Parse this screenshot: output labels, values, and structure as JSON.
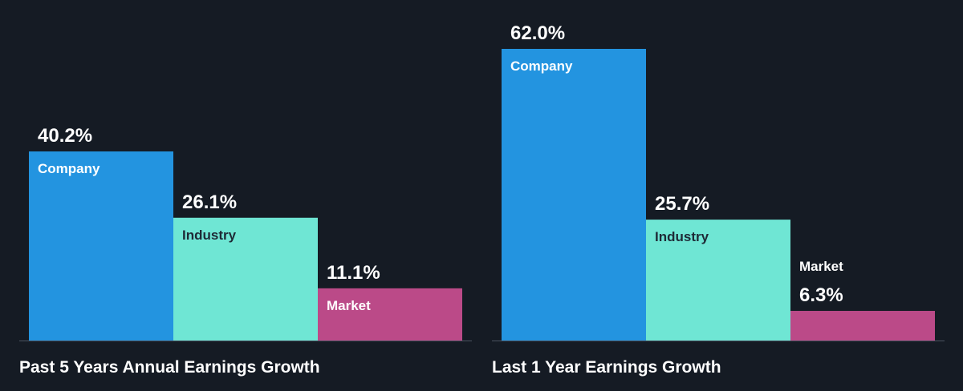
{
  "colors": {
    "background": "#151b24",
    "company": "#2394e0",
    "industry": "#6fe6d4",
    "market": "#bb4a88",
    "company_label_text": "#ffffff",
    "industry_label_text": "#1e2a36",
    "market_label_text": "#ffffff",
    "baseline": "#4a5260"
  },
  "chart_data": [
    {
      "type": "bar",
      "title": "Past 5 Years Annual Earnings Growth",
      "unit": "%",
      "ylim": [
        0,
        62.0
      ],
      "categories": [
        "Company",
        "Industry",
        "Market"
      ],
      "values": [
        40.2,
        26.1,
        11.1
      ],
      "value_labels": [
        "40.2%",
        "26.1%",
        "11.1%"
      ],
      "legend": "labels inside bars"
    },
    {
      "type": "bar",
      "title": "Last 1 Year Earnings Growth",
      "unit": "%",
      "ylim": [
        0,
        62.0
      ],
      "categories": [
        "Company",
        "Industry",
        "Market"
      ],
      "values": [
        62.0,
        25.7,
        6.3
      ],
      "value_labels": [
        "62.0%",
        "25.7%",
        "6.3%"
      ],
      "legend": "labels inside bars"
    }
  ]
}
